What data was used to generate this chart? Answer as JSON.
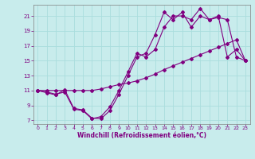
{
  "xlabel": "Windchill (Refroidissement éolien,°C)",
  "bg_color": "#c8ecec",
  "line_color": "#800080",
  "grid_color": "#aadddd",
  "spine_color": "#808080",
  "xlim": [
    -0.5,
    23.5
  ],
  "ylim": [
    6.5,
    22.5
  ],
  "yticks": [
    7,
    9,
    11,
    13,
    15,
    17,
    19,
    21
  ],
  "xticks": [
    0,
    1,
    2,
    3,
    4,
    5,
    6,
    7,
    8,
    9,
    10,
    11,
    12,
    13,
    14,
    15,
    16,
    17,
    18,
    19,
    20,
    21,
    22,
    23
  ],
  "series": [
    {
      "x": [
        0,
        1,
        2,
        3,
        4,
        5,
        6,
        7,
        8,
        9,
        10,
        11,
        12,
        13,
        14,
        15,
        16,
        17,
        18,
        19,
        20,
        21,
        22,
        23
      ],
      "y": [
        11,
        10.7,
        10.4,
        11.1,
        8.6,
        8.4,
        7.3,
        7.2,
        8.3,
        10.5,
        13.0,
        15.5,
        16.0,
        18.5,
        21.5,
        20.5,
        21.5,
        19.5,
        21.0,
        20.5,
        21.0,
        15.5,
        16.5,
        15.0
      ]
    },
    {
      "x": [
        0,
        1,
        2,
        3,
        4,
        5,
        6,
        7,
        8,
        9,
        10,
        11,
        12,
        13,
        14,
        15,
        16,
        17,
        18,
        19,
        20,
        21,
        22,
        23
      ],
      "y": [
        11,
        10.8,
        10.5,
        10.8,
        8.5,
        8.3,
        7.2,
        7.5,
        8.8,
        11.0,
        13.5,
        16.0,
        15.5,
        16.5,
        19.5,
        21.0,
        21.0,
        20.5,
        22.0,
        20.5,
        20.8,
        20.5,
        15.5,
        15.0
      ]
    },
    {
      "x": [
        0,
        1,
        2,
        3,
        4,
        5,
        6,
        7,
        8,
        9,
        10,
        11,
        12,
        13,
        14,
        15,
        16,
        17,
        18,
        19,
        20,
        21,
        22,
        23
      ],
      "y": [
        11,
        11.0,
        11.0,
        11.0,
        11.0,
        11.0,
        11.0,
        11.2,
        11.5,
        11.8,
        12.0,
        12.3,
        12.7,
        13.2,
        13.8,
        14.3,
        14.8,
        15.3,
        15.8,
        16.3,
        16.8,
        17.3,
        17.8,
        15.0
      ]
    }
  ]
}
